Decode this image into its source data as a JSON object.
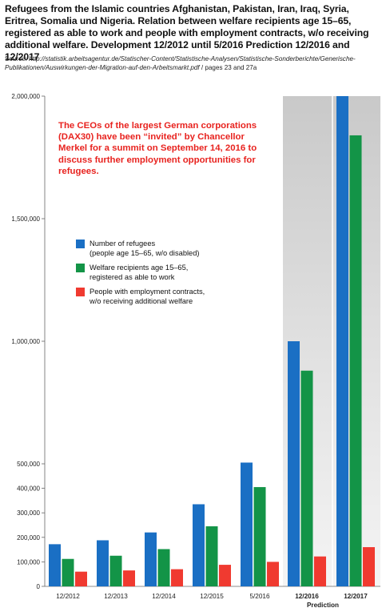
{
  "title": "Refugees from the Islamic countries Afghanistan, Pakistan, Iran, Iraq, Syria, Eritrea, Somalia und Nigeria. Relation between welfare recipients age 15–65, registered as able to work and people with employment contracts, w/o receiving additional welfare. Development 12/2012 until 5/2016 Prediction 12/2016 and 12/2017",
  "source": {
    "prefix": "Source: ",
    "url_line1": "http://statistik.arbeitsagentur.de/Statischer-Content/Statistische-Analysen/Statistische-Sonderberichte/Generische-",
    "url_line2": "Publikationen/Auswirkungen-der-Migration-auf-den-Arbeitsmarkt.pdf",
    "suffix": " / pages 23 and 27a"
  },
  "annotation": "The CEOs of the largest German corporations (DAX30) have been “invited” by Chancellor Merkel for a summit on September 14, 2016 to discuss further employment opportunities for refugees.",
  "prediction_label": "Prediction",
  "colors": {
    "refugees": "#1a6fc4",
    "welfare": "#139447",
    "employment": "#f03a30",
    "prediction_band": "#e4e4e4"
  },
  "chart_data": {
    "type": "bar",
    "categories": [
      "12/2012",
      "12/2013",
      "12/2014",
      "12/2015",
      "5/2016",
      "12/2016",
      "12/2017"
    ],
    "prediction_categories": [
      "12/2016",
      "12/2017"
    ],
    "series": [
      {
        "name": "Number of refugees\n(people age 15–65, w/o disabled)",
        "values": [
          172000,
          188000,
          220000,
          335000,
          505000,
          1000000,
          2000000
        ]
      },
      {
        "name": "Welfare recipients age 15–65,\nregistered as able to work",
        "values": [
          112000,
          125000,
          152000,
          245000,
          405000,
          880000,
          1840000
        ]
      },
      {
        "name": "People with employment contracts,\nw/o receiving additional welfare",
        "values": [
          60000,
          65000,
          70000,
          88000,
          100000,
          122000,
          160000
        ]
      }
    ],
    "ylim": [
      0,
      2000000
    ],
    "yticks": [
      {
        "value": 0,
        "label": "0"
      },
      {
        "value": 100000,
        "label": "100,000"
      },
      {
        "value": 200000,
        "label": "200,000"
      },
      {
        "value": 300000,
        "label": "300,000"
      },
      {
        "value": 400000,
        "label": "400,000"
      },
      {
        "value": 500000,
        "label": "500,000"
      },
      {
        "value": 1000000,
        "label": "1,000,000"
      },
      {
        "value": 1500000,
        "label": "1,500,000"
      },
      {
        "value": 2000000,
        "label": "2,000,000"
      }
    ],
    "xlabel": "",
    "ylabel": "",
    "grid": false,
    "legend_position": "middle-left"
  }
}
